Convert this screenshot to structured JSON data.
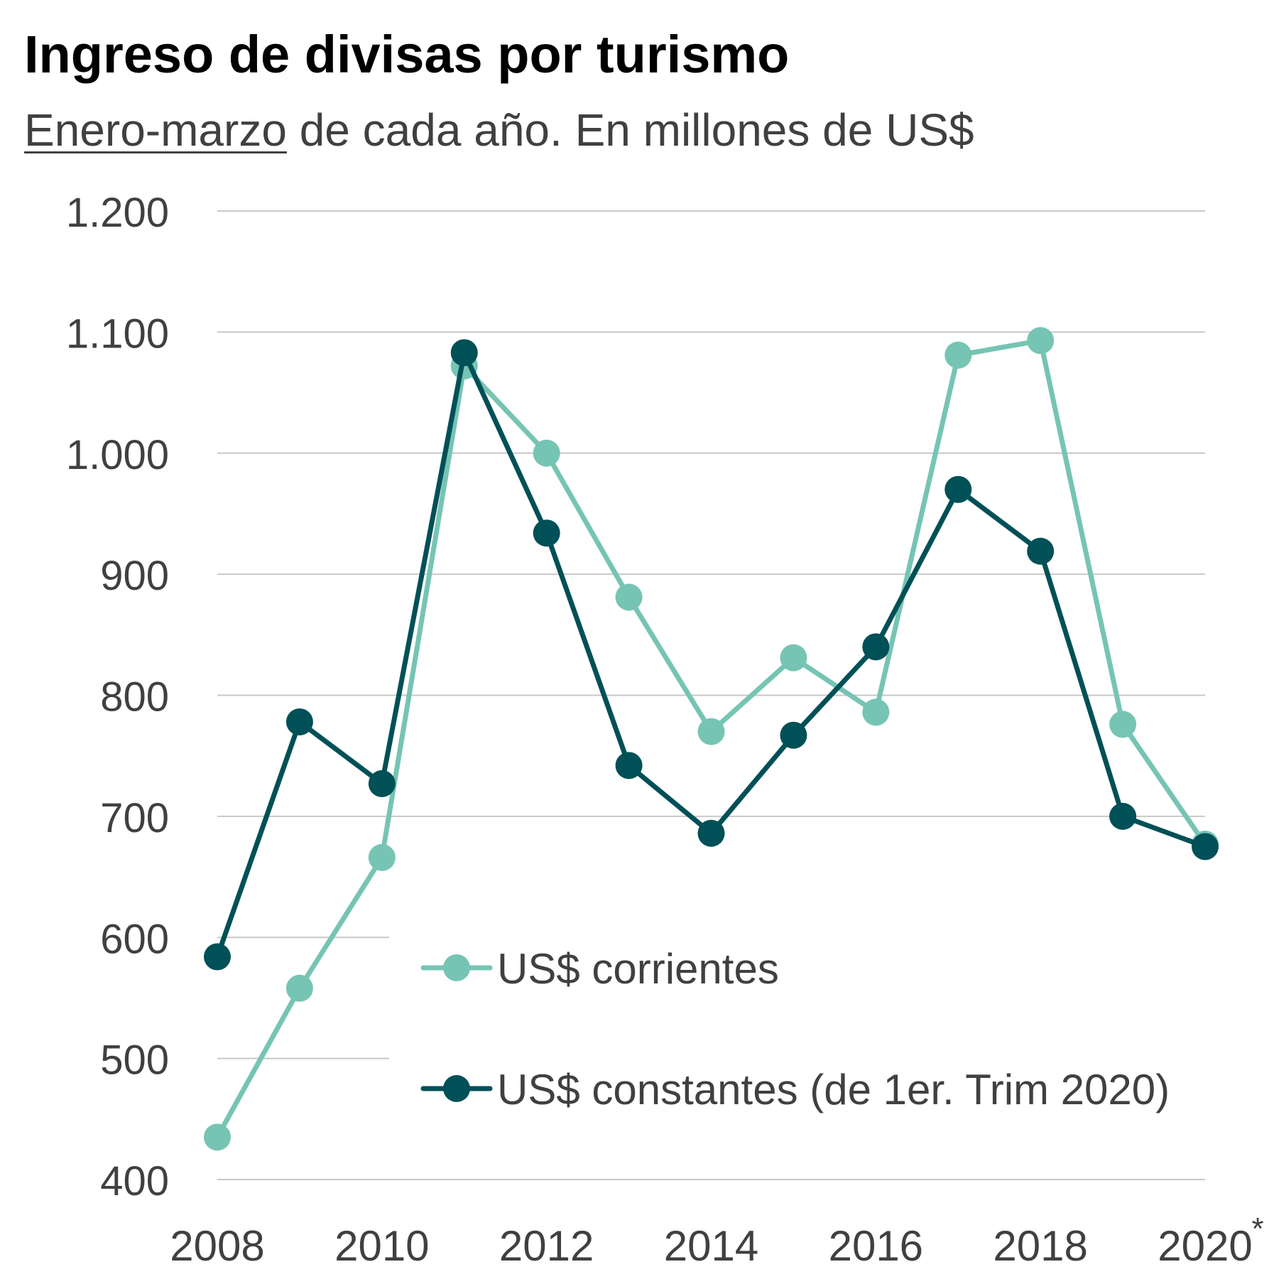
{
  "header": {
    "title": "Ingreso de divisas por turismo",
    "subtitle_underlined": "Enero-marzo",
    "subtitle_rest": " de cada año. En millones de US$"
  },
  "colors": {
    "corrientes": "#76C4B4",
    "constantes": "#005057",
    "grid": "#C8C8C8",
    "text": "#404040"
  },
  "chart_data": {
    "type": "line",
    "title": "Ingreso de divisas por turismo",
    "subtitle": "Enero-marzo de cada año. En millones de US$",
    "x": [
      2008,
      2009,
      2010,
      2011,
      2012,
      2013,
      2014,
      2015,
      2016,
      2017,
      2018,
      2019,
      2020
    ],
    "xticks": [
      2008,
      2010,
      2012,
      2014,
      2016,
      2018,
      2020
    ],
    "xtick_labels": [
      "2008",
      "2010",
      "2012",
      "2014",
      "2016",
      "2018",
      "2020"
    ],
    "xtick_footnote": {
      "tick": 2020,
      "mark": "*"
    },
    "ylim": [
      400,
      1200
    ],
    "yticks": [
      400,
      500,
      600,
      700,
      800,
      900,
      1000,
      1100,
      1200
    ],
    "ytick_labels": [
      "400",
      "500",
      "600",
      "700",
      "800",
      "900",
      "1.000",
      "1.100",
      "1.200"
    ],
    "grid": true,
    "legend_position": "inside-bottom-center",
    "series": [
      {
        "name": "US$ corrientes",
        "color": "#76C4B4",
        "values": [
          435,
          558,
          666,
          1072,
          1000,
          881,
          770,
          831,
          786,
          1081,
          1093,
          776,
          677
        ]
      },
      {
        "name": "US$ constantes (de 1er. Trim 2020)",
        "color": "#005057",
        "values": [
          584,
          778,
          727,
          1083,
          934,
          742,
          686,
          767,
          840,
          970,
          919,
          700,
          675
        ]
      }
    ]
  }
}
